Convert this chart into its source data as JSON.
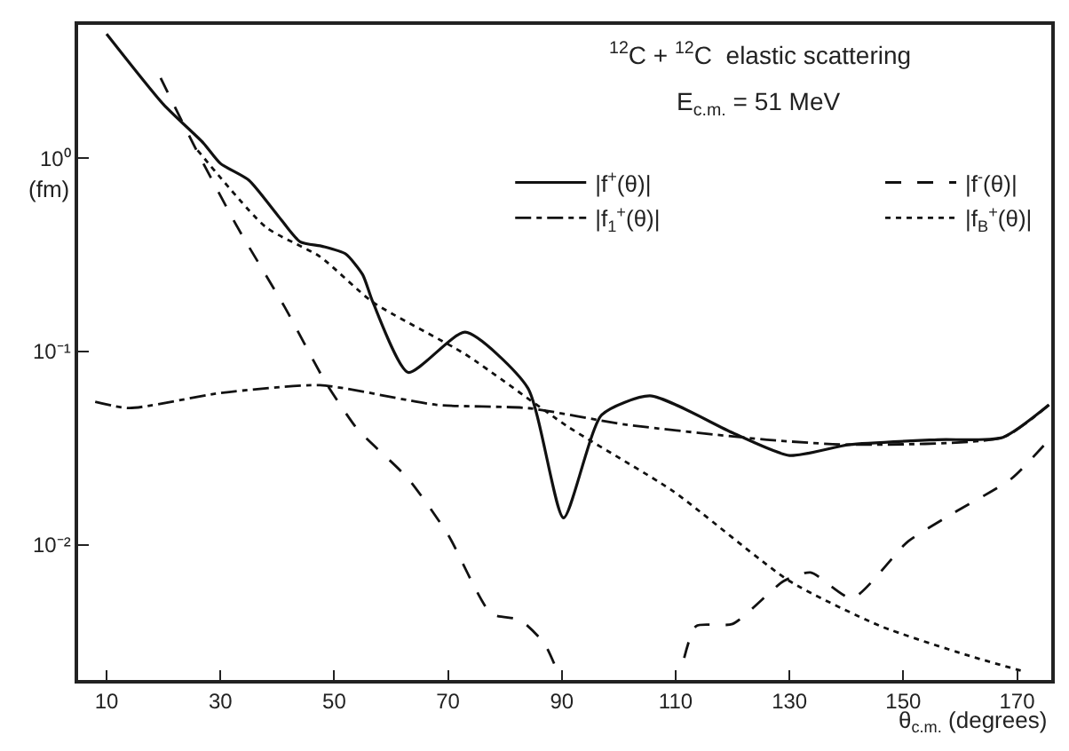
{
  "chart_data": {
    "type": "line",
    "xlabel": "θ$_{c.m.}$ (degrees)",
    "ylabel": "(fm)",
    "annotations": [
      "$^{12}$C + $^{12}$C  elastic scattering",
      "E$_{c.m.}$ = 51 MeV"
    ],
    "log": "y",
    "grid": false,
    "legend": "top right",
    "xlim": [
      5,
      176
    ],
    "xticks": [
      10,
      30,
      50,
      70,
      90,
      110,
      130,
      150,
      170
    ],
    "ylim": [
      0.002,
      4.9
    ],
    "yticks": [
      {
        "value": 1,
        "label": "10⁰"
      },
      {
        "value": 0.1,
        "label": "10⁻¹"
      },
      {
        "value": 0.01,
        "label": "10⁻²"
      }
    ],
    "series": [
      {
        "name": "|f$^{+}$(θ)|",
        "color": "#111111",
        "line_style": "solid",
        "x": [
          10,
          20,
          27,
          30,
          35,
          40,
          44,
          48,
          52,
          55,
          56.8,
          63,
          73,
          84,
          90.3,
          97,
          105.5,
          120,
          130,
          140.5,
          156,
          167.5,
          175.6
        ],
        "values": [
          4.4,
          1.9,
          1.2,
          0.94,
          0.77,
          0.51,
          0.37,
          0.35,
          0.32,
          0.25,
          0.18,
          0.078,
          0.126,
          0.065,
          0.0138,
          0.047,
          0.059,
          0.038,
          0.029,
          0.033,
          0.035,
          0.036,
          0.053
        ]
      },
      {
        "name": "|f$^{-}$(θ)|",
        "color": "#111111",
        "line_style": "dashed",
        "x": [
          19.5,
          25.8,
          33,
          41.3,
          48.4,
          53.7,
          55.9,
          63,
          70,
          77.6,
          82.6,
          86.9,
          89,
          100,
          111.5,
          113.6,
          120,
          129,
          133.7,
          141,
          150.8,
          159,
          169,
          175.6
        ],
        "values": [
          2.6,
          1.1,
          0.44,
          0.17,
          0.07,
          0.041,
          0.035,
          0.022,
          0.0113,
          0.0044,
          0.0041,
          0.0031,
          0.0023,
          null,
          0.0026,
          0.0038,
          0.0039,
          0.0065,
          0.0072,
          0.0053,
          0.0104,
          0.0147,
          0.022,
          0.035
        ]
      },
      {
        "name": "|f$_{1}$$^{+}$(θ)|",
        "color": "#111111",
        "line_style": "dashdot",
        "x": [
          8,
          14,
          30,
          47.5,
          68,
          84,
          101,
          126,
          140.5,
          167.5,
          175.6
        ],
        "values": [
          0.055,
          0.051,
          0.061,
          0.067,
          0.053,
          0.051,
          0.042,
          0.035,
          0.033,
          0.036,
          0.053
        ]
      },
      {
        "name": "|f$_{B}$$^{+}$(θ)|",
        "color": "#111111",
        "line_style": "dotted",
        "x": [
          26,
          38,
          47.5,
          56.8,
          73,
          91,
          109.5,
          130,
          146,
          161,
          171.5
        ],
        "values": [
          1.1,
          0.44,
          0.31,
          0.18,
          0.097,
          0.041,
          0.019,
          0.0065,
          0.0038,
          0.0027,
          0.0022
        ]
      }
    ]
  }
}
